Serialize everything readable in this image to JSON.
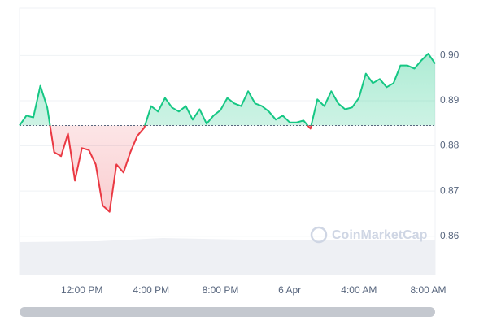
{
  "chart_data": {
    "type": "line",
    "categories": [
      null,
      null,
      null,
      null,
      null,
      null,
      null,
      null,
      null,
      "12:00 PM",
      null,
      null,
      null,
      null,
      null,
      null,
      null,
      null,
      null,
      "4:00 PM",
      null,
      null,
      null,
      null,
      null,
      null,
      null,
      null,
      null,
      "8:00 PM",
      null,
      null,
      null,
      null,
      null,
      null,
      null,
      null,
      null,
      "6 Apr",
      null,
      null,
      null,
      null,
      null,
      null,
      null,
      null,
      null,
      "4:00 AM",
      null,
      null,
      null,
      null,
      null,
      null,
      null,
      null,
      null,
      "8:00 AM",
      null
    ],
    "values": [
      0.8845,
      0.8867,
      0.8863,
      0.8933,
      0.8885,
      0.8786,
      0.8777,
      0.8827,
      0.8723,
      0.8795,
      0.8791,
      0.8759,
      0.8668,
      0.8654,
      0.8759,
      0.8741,
      0.8786,
      0.8822,
      0.884,
      0.8888,
      0.8876,
      0.8906,
      0.8885,
      0.8876,
      0.8888,
      0.8858,
      0.8881,
      0.8849,
      0.8867,
      0.8879,
      0.8906,
      0.8894,
      0.8888,
      0.8921,
      0.8894,
      0.8888,
      0.8876,
      0.8858,
      0.8867,
      0.8852,
      0.8852,
      0.8856,
      0.8838,
      0.8903,
      0.8888,
      0.8921,
      0.8894,
      0.8881,
      0.8885,
      0.8906,
      0.896,
      0.8939,
      0.8948,
      0.893,
      0.8939,
      0.8978,
      0.8978,
      0.8971,
      0.8989,
      0.9004,
      0.8982
    ],
    "baseline": 0.8845,
    "up_color": "#16c784",
    "down_color": "#ea3943",
    "ylim": [
      0.8515,
      0.9105
    ],
    "yticks": [
      {
        "value": 0.86,
        "label": "0.86"
      },
      {
        "value": 0.87,
        "label": "0.87"
      },
      {
        "value": 0.88,
        "label": "0.88"
      },
      {
        "value": 0.89,
        "label": "0.89"
      },
      {
        "value": 0.9,
        "label": "0.90"
      }
    ],
    "grid": true,
    "watermark": "CoinMarketCap"
  }
}
